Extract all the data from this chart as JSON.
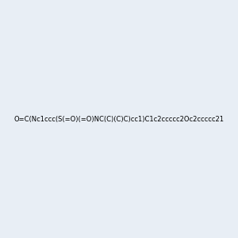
{
  "smiles": "O=C(Nc1ccc(S(=O)(=O)NC(C)(C)C)cc1)C1c2ccccc2Oc2ccccc21",
  "title": "",
  "bg_color": "#e8eef5",
  "img_size": [
    300,
    300
  ]
}
